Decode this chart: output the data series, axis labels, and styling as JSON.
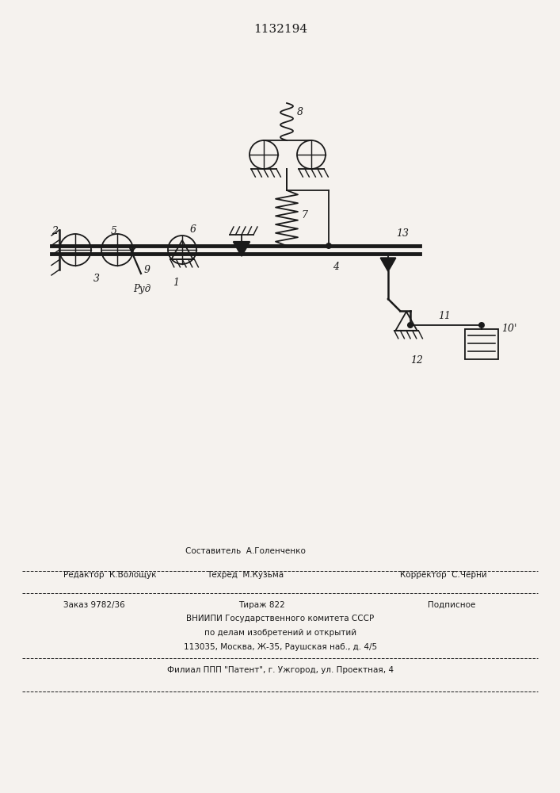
{
  "title": "1132194",
  "bg_color": "#f5f2ee",
  "line_color": "#1a1a1a",
  "footer": {
    "sestavitel": "Составитель  А.Голенченко",
    "redaktor": "Редактор  К.Волощук",
    "tehred": "Техред  М.Кузьма",
    "korrektor": "Корректор  С.Черни",
    "zakaz": "Заказ 9782/36",
    "tirazh": "Тираж 822",
    "podpisnoe": "Подписное",
    "vniip1": "ВНИИПИ Государственного комитета СССР",
    "vniip2": "по делам изобретений и открытий",
    "address": "113035, Москва, Ж-35, Раушская наб., д. 4/5",
    "filial": "Филиал ППП \"Патент\", г. Ужгород, ул. Проектная, 4"
  }
}
